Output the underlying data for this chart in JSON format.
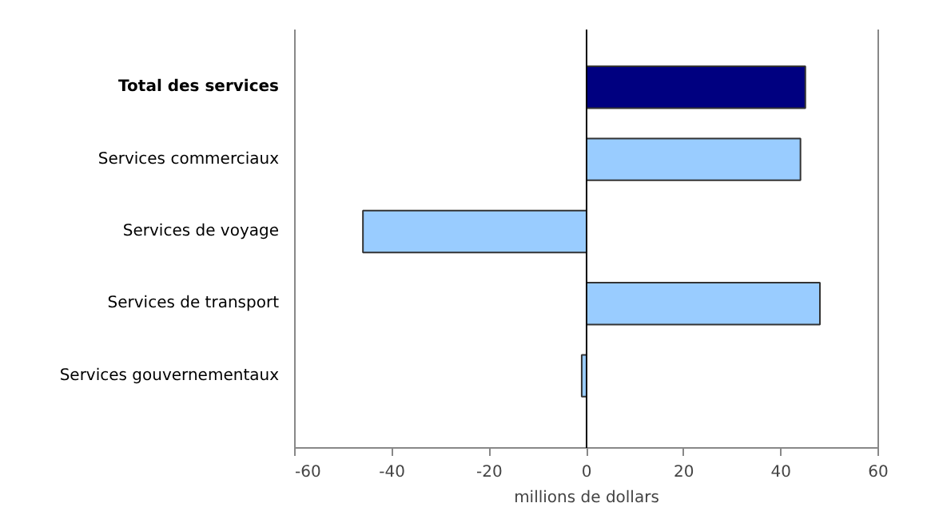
{
  "chart_data": {
    "type": "bar",
    "orientation": "horizontal",
    "xlabel": "millions de dollars",
    "categories": [
      "Total des services",
      "Services commerciaux",
      "Services de voyage",
      "Services de transport",
      "Services gouvernementaux"
    ],
    "values": [
      45,
      44,
      -46,
      48,
      -1
    ],
    "colors": [
      "#000080",
      "#99ccff",
      "#99ccff",
      "#99ccff",
      "#99ccff"
    ],
    "xlim": [
      -60,
      60
    ],
    "xticks": [
      -60,
      -40,
      -20,
      0,
      20,
      40,
      60
    ]
  }
}
